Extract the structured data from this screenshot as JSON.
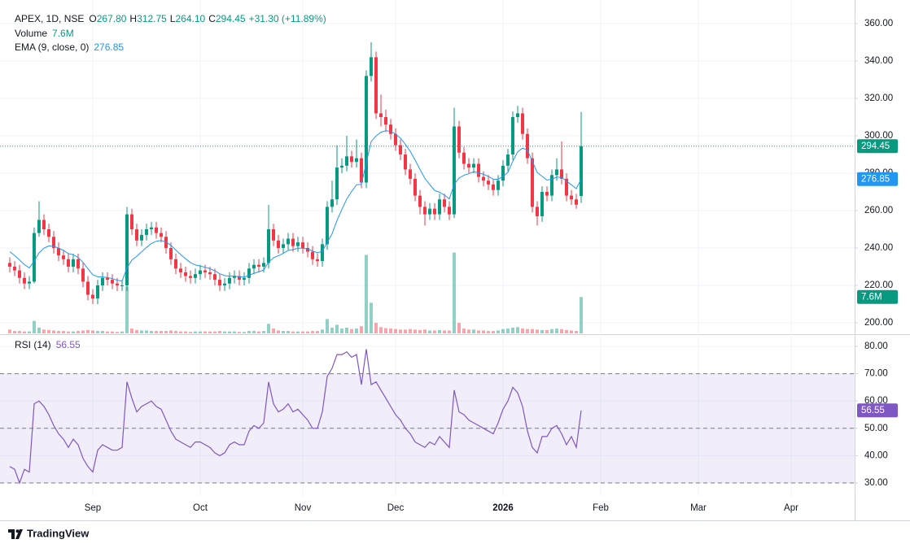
{
  "header": {
    "ohlc": [
      {
        "key": "O",
        "value": "267.80"
      },
      {
        "key": "H",
        "value": "312.75"
      },
      {
        "key": "L",
        "value": "264.10"
      },
      {
        "key": "C",
        "value": "294.45"
      }
    ],
    "change": "+31.30 (+11.89%)"
  },
  "footer": {
    "brand": "TradingView"
  },
  "chart_data": [
    {
      "type": "candlestick",
      "title": "APEX, 1D, NSE",
      "up_color": "#089981",
      "down_color": "#f23645",
      "xlim": [
        -0.33,
        173
      ],
      "xticks": [
        {
          "value": 17,
          "label": "Sep"
        },
        {
          "value": 39,
          "label": "Oct"
        },
        {
          "value": 60,
          "label": "Nov"
        },
        {
          "value": 79,
          "label": "Dec"
        },
        {
          "value": 101,
          "label": "2026"
        },
        {
          "value": 121,
          "label": "Feb"
        },
        {
          "value": 141,
          "label": "Mar"
        },
        {
          "value": 160,
          "label": "Apr"
        }
      ],
      "ylim": [
        194.35,
        368.26
      ],
      "yticks": [
        {
          "value": 200,
          "label": "200.00"
        },
        {
          "value": 220,
          "label": "220.00"
        },
        {
          "value": 240,
          "label": "240.00"
        },
        {
          "value": 260,
          "label": "260.00"
        },
        {
          "value": 280,
          "label": "280.00"
        },
        {
          "value": 300,
          "label": "300.00"
        },
        {
          "value": 320,
          "label": "320.00"
        },
        {
          "value": 340,
          "label": "340.00"
        },
        {
          "value": 360,
          "label": "360.00"
        }
      ],
      "grid": true,
      "last_price_line": true,
      "open": [
        232,
        230,
        228,
        224,
        221,
        222,
        248,
        255,
        250,
        246,
        240,
        236,
        234,
        230,
        234,
        229,
        222,
        215,
        213,
        220,
        224,
        223,
        221,
        220,
        220,
        258,
        250,
        244,
        247,
        250,
        251,
        248,
        246,
        240,
        234,
        229,
        227,
        225,
        224,
        226,
        228,
        227,
        226,
        223,
        220,
        221,
        224,
        225,
        223,
        224,
        229,
        231,
        230,
        232,
        250,
        244,
        240,
        242,
        245,
        241,
        243,
        240,
        238,
        234,
        233,
        242,
        262,
        266,
        283,
        284,
        289,
        286,
        288,
        275,
        332,
        342,
        312,
        310,
        306,
        301,
        295,
        290,
        282,
        277,
        268,
        262,
        258,
        261,
        258,
        266,
        262,
        258,
        305,
        291,
        285,
        283,
        285,
        278,
        276,
        274,
        271,
        276,
        284,
        290,
        310,
        312,
        301,
        288,
        262,
        257,
        270,
        268,
        279,
        282,
        277,
        268,
        266,
        267.8
      ],
      "high": [
        235,
        233,
        231,
        227,
        225,
        251,
        265,
        258,
        253,
        249,
        243,
        239,
        237,
        237,
        237,
        232,
        225,
        218,
        223,
        227,
        227,
        226,
        224,
        223,
        262,
        261,
        253,
        250,
        253,
        254,
        254,
        251,
        249,
        243,
        237,
        232,
        230,
        228,
        229,
        231,
        231,
        230,
        229,
        226,
        224,
        227,
        228,
        228,
        227,
        232,
        234,
        234,
        235,
        263,
        253,
        247,
        245,
        248,
        248,
        246,
        246,
        243,
        241,
        237,
        245,
        265,
        276,
        295,
        288,
        300,
        292,
        298,
        291,
        335,
        350,
        345,
        322,
        314,
        309,
        304,
        298,
        293,
        285,
        280,
        271,
        265,
        264,
        264,
        269,
        269,
        265,
        315,
        308,
        294,
        288,
        288,
        288,
        281,
        279,
        277,
        279,
        287,
        293,
        313,
        316,
        315,
        304,
        291,
        265,
        273,
        273,
        282,
        288,
        297,
        280,
        271,
        269,
        312.75
      ],
      "low": [
        227,
        225,
        221,
        218,
        218,
        221,
        246,
        247,
        243,
        237,
        233,
        231,
        227,
        227,
        226,
        219,
        212,
        210,
        210,
        217,
        220,
        218,
        217,
        217,
        217,
        247,
        241,
        241,
        244,
        247,
        245,
        243,
        237,
        231,
        226,
        224,
        222,
        221,
        221,
        223,
        224,
        223,
        220,
        217,
        217,
        218,
        221,
        220,
        220,
        221,
        226,
        227,
        227,
        229,
        241,
        237,
        237,
        239,
        238,
        238,
        237,
        235,
        231,
        230,
        230,
        239,
        259,
        263,
        280,
        281,
        283,
        283,
        272,
        272,
        329,
        309,
        305,
        302,
        298,
        292,
        287,
        279,
        274,
        265,
        258,
        252,
        255,
        255,
        255,
        259,
        255,
        256,
        288,
        282,
        280,
        280,
        275,
        273,
        271,
        268,
        268,
        273,
        281,
        287,
        307,
        298,
        285,
        259,
        252,
        254,
        265,
        265,
        276,
        274,
        265,
        263,
        261,
        264.1
      ],
      "close": [
        230,
        228,
        224,
        221,
        222,
        248,
        255,
        250,
        246,
        240,
        236,
        234,
        230,
        234,
        229,
        222,
        215,
        213,
        220,
        224,
        223,
        221,
        220,
        220,
        258,
        250,
        244,
        247,
        250,
        251,
        248,
        246,
        240,
        234,
        229,
        227,
        225,
        224,
        226,
        228,
        227,
        226,
        223,
        220,
        221,
        224,
        225,
        223,
        224,
        229,
        231,
        230,
        232,
        250,
        244,
        240,
        242,
        245,
        241,
        243,
        240,
        238,
        234,
        233,
        242,
        262,
        266,
        283,
        284,
        289,
        286,
        288,
        275,
        332,
        342,
        312,
        310,
        306,
        301,
        295,
        290,
        282,
        277,
        268,
        262,
        258,
        261,
        258,
        266,
        262,
        258,
        305,
        291,
        285,
        283,
        285,
        278,
        276,
        274,
        271,
        276,
        284,
        290,
        310,
        312,
        301,
        288,
        262,
        257,
        270,
        268,
        279,
        282,
        277,
        268,
        266,
        263.15,
        294.45
      ],
      "ema": {
        "name": "EMA (9, close, 0)",
        "color": "#2196f3",
        "values": [
          238,
          236,
          233.6,
          231.1,
          229.3,
          233,
          237.4,
          239.9,
          241.1,
          240.9,
          239.9,
          238.7,
          237,
          236.4,
          234.9,
          232.3,
          228.9,
          225.7,
          224.6,
          224.5,
          224.2,
          223.6,
          222.8,
          222.3,
          229.4,
          233.5,
          235.6,
          237.9,
          240.3,
          242.4,
          243.6,
          244,
          243.2,
          241.4,
          238.9,
          236.5,
          234.2,
          232.2,
          230.9,
          230.4,
          229.7,
          228.9,
          227.8,
          226.2,
          225.2,
          224.9,
          225,
          224.6,
          224.4,
          225.4,
          226.5,
          227.2,
          228.2,
          232.5,
          234.8,
          235.9,
          237.1,
          238.7,
          239.1,
          239.9,
          239.9,
          239.5,
          238.4,
          237.4,
          238.3,
          243,
          247.6,
          254.7,
          260.6,
          266.2,
          270.2,
          273.8,
          274,
          285.6,
          296.9,
          299.9,
          301.9,
          302.7,
          302.4,
          300.9,
          298.7,
          295.4,
          291.7,
          287,
          282,
          277.2,
          273.9,
          270.8,
          269.8,
          268.3,
          266.2,
          274,
          277.4,
          278.9,
          279.7,
          280.8,
          280.2,
          279.4,
          278.3,
          276.8,
          276.7,
          278.2,
          280.5,
          286.4,
          291.5,
          293.4,
          292.3,
          286.3,
          280.4,
          278.3,
          276.3,
          276.8,
          277.9,
          277.7,
          275.8,
          273.8,
          271.7,
          276.85
        ]
      },
      "volume": {
        "name": "Volume",
        "last_label": "7.6M",
        "ylim": [
          0,
          68
        ],
        "values": [
          0.8,
          0.5,
          0.5,
          0.4,
          0.4,
          2.6,
          1.2,
          0.8,
          0.7,
          0.6,
          0.5,
          0.5,
          0.4,
          0.4,
          0.5,
          0.6,
          0.7,
          0.6,
          0.5,
          0.5,
          0.4,
          0.4,
          0.3,
          0.4,
          9.8,
          1.0,
          0.7,
          0.6,
          0.6,
          0.5,
          0.5,
          0.5,
          0.5,
          0.6,
          0.5,
          0.4,
          0.4,
          0.3,
          0.4,
          0.4,
          0.4,
          0.4,
          0.4,
          0.5,
          0.4,
          0.4,
          0.4,
          0.3,
          0.3,
          0.5,
          0.5,
          0.4,
          0.5,
          2.0,
          1.0,
          0.6,
          0.5,
          0.5,
          0.4,
          0.4,
          0.4,
          0.4,
          0.5,
          0.5,
          0.8,
          3.0,
          1.2,
          1.8,
          1.0,
          1.2,
          0.9,
          1.0,
          1.5,
          16.4,
          6.4,
          2.2,
          1.3,
          1.1,
          1.0,
          0.9,
          0.8,
          0.8,
          0.9,
          0.8,
          0.7,
          0.8,
          0.6,
          0.6,
          0.7,
          0.6,
          0.6,
          16.9,
          2.2,
          1.0,
          0.8,
          0.8,
          0.6,
          0.6,
          0.5,
          0.5,
          0.6,
          0.9,
          1.0,
          1.2,
          1.3,
          1.0,
          0.9,
          0.9,
          0.8,
          0.7,
          0.7,
          0.9,
          1.0,
          0.9,
          0.7,
          0.6,
          0.5,
          7.6
        ]
      }
    },
    {
      "type": "line",
      "name": "RSI (14)",
      "color": "#7e57c2",
      "ylim": [
        25.24,
        83.87
      ],
      "yticks": [
        {
          "value": 30,
          "label": "30.00"
        },
        {
          "value": 40,
          "label": "40.00"
        },
        {
          "value": 50,
          "label": "50.00"
        },
        {
          "value": 60,
          "label": "60.00"
        },
        {
          "value": 70,
          "label": "70.00"
        },
        {
          "value": 80,
          "label": "80.00"
        }
      ],
      "levels": [
        70,
        50,
        30
      ],
      "values": [
        36,
        35,
        30,
        35,
        34,
        59,
        60,
        58,
        55,
        51,
        48,
        46,
        43,
        46,
        44,
        39,
        36,
        34,
        42,
        44,
        43,
        42,
        42,
        43,
        67,
        61,
        56,
        58,
        59,
        60,
        58,
        57,
        53,
        49,
        46,
        45,
        44,
        43,
        45,
        45,
        44,
        43,
        41,
        40,
        41,
        44,
        45,
        44,
        44,
        49,
        51,
        50,
        52,
        67,
        59,
        56,
        57,
        59,
        56,
        57,
        55,
        53,
        50,
        50,
        56,
        69,
        72,
        77,
        77,
        78,
        76,
        77,
        66,
        79,
        66,
        67,
        64,
        61,
        58,
        55,
        53,
        50,
        48,
        45,
        44,
        43,
        45,
        44,
        47,
        45,
        43,
        64,
        56,
        55,
        53,
        52,
        51,
        50,
        49,
        48,
        52,
        57,
        60,
        65,
        63,
        58,
        49,
        43,
        41,
        47,
        47,
        50,
        51,
        48,
        44,
        47,
        43,
        56.55
      ]
    }
  ]
}
